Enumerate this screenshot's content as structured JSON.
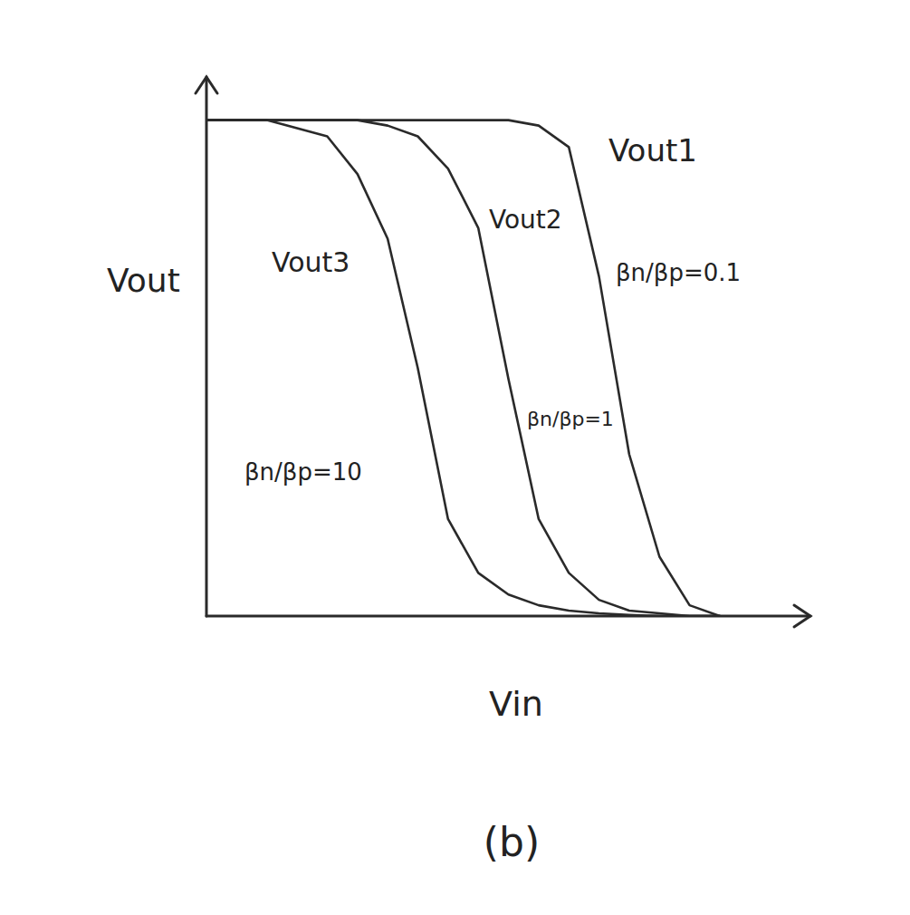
{
  "chart_data": {
    "type": "line",
    "x_label": "Vin",
    "y_label": "Vout",
    "caption": "(b)",
    "xlim": [
      0,
      10
    ],
    "ylim": [
      0,
      10
    ],
    "tick_labels": false,
    "grid": false,
    "x": [
      0,
      1,
      2,
      2.5,
      3,
      3.5,
      4,
      4.5,
      5,
      5.5,
      6,
      6.5,
      7,
      7.5,
      8,
      8.5
    ],
    "series": [
      {
        "name": "Vout1",
        "color": "#2a2a2a",
        "values": [
          9.2,
          9.2,
          9.2,
          9.2,
          9.2,
          9.2,
          9.2,
          9.2,
          9.2,
          9.1,
          8.7,
          6.3,
          3.0,
          1.1,
          0.2,
          0
        ]
      },
      {
        "name": "Vout2",
        "color": "#2a2a2a",
        "values": [
          9.2,
          9.2,
          9.2,
          9.2,
          9.1,
          8.9,
          8.3,
          7.2,
          4.4,
          1.8,
          0.8,
          0.3,
          0.1,
          0.05,
          0,
          0
        ]
      },
      {
        "name": "Vout3",
        "color": "#2a2a2a",
        "values": [
          9.2,
          9.2,
          8.9,
          8.2,
          7.0,
          4.6,
          1.8,
          0.8,
          0.4,
          0.2,
          0.1,
          0.05,
          0.02,
          0,
          0,
          0
        ]
      }
    ],
    "annotations": [
      "βn/βp=0.1",
      "βn/βp=1",
      "βn/βp=10"
    ]
  }
}
